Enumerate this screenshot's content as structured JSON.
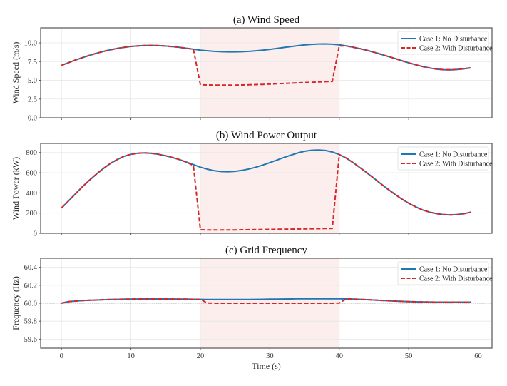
{
  "chart_data": {
    "type": "line",
    "xlabel": "Time (s)",
    "x_ticks": [
      "0",
      "10",
      "20",
      "30",
      "40",
      "50",
      "60"
    ],
    "x_tick_values": [
      0,
      10,
      20,
      30,
      40,
      50,
      60
    ],
    "xlim": [
      -3,
      62
    ],
    "disturbance_window": [
      20,
      40
    ],
    "colors": {
      "case1": "#1f77b4",
      "case2": "#d62728",
      "shade": "#fdeeee"
    },
    "legend_location": "top-right",
    "x": [
      0,
      1,
      2,
      3,
      4,
      5,
      6,
      7,
      8,
      9,
      10,
      11,
      12,
      13,
      14,
      15,
      16,
      17,
      18,
      19,
      20,
      21,
      22,
      23,
      24,
      25,
      26,
      27,
      28,
      29,
      30,
      31,
      32,
      33,
      34,
      35,
      36,
      37,
      38,
      39,
      40,
      41,
      42,
      43,
      44,
      45,
      46,
      47,
      48,
      49,
      50,
      51,
      52,
      53,
      54,
      55,
      56,
      57,
      58,
      59
    ],
    "panels": [
      {
        "title": "(a) Wind Speed",
        "ylabel": "Wind Speed (m/s)",
        "ylim": [
          0,
          12
        ],
        "y_ticks": [
          "0.0",
          "2.5",
          "5.0",
          "7.5",
          "10.0"
        ],
        "y_tick_values": [
          0,
          2.5,
          5,
          7.5,
          10
        ],
        "reference_line": null,
        "series": [
          {
            "name": "Case 1: No Disturbance",
            "style": "solid",
            "values": [
              7.0,
              7.35,
              7.7,
              8.02,
              8.32,
              8.6,
              8.85,
              9.07,
              9.25,
              9.4,
              9.52,
              9.6,
              9.65,
              9.66,
              9.63,
              9.58,
              9.5,
              9.4,
              9.28,
              9.15,
              9.03,
              8.94,
              8.87,
              8.82,
              8.8,
              8.8,
              8.82,
              8.87,
              8.94,
              9.03,
              9.13,
              9.25,
              9.38,
              9.5,
              9.62,
              9.72,
              9.8,
              9.85,
              9.86,
              9.82,
              9.74,
              9.6,
              9.42,
              9.22,
              9.0,
              8.75,
              8.48,
              8.2,
              7.92,
              7.62,
              7.34,
              7.08,
              6.85,
              6.65,
              6.5,
              6.42,
              6.4,
              6.45,
              6.55,
              6.68
            ]
          },
          {
            "name": "Case 2: With Disturbance",
            "style": "dashed",
            "values": [
              7.0,
              7.35,
              7.7,
              8.02,
              8.32,
              8.6,
              8.85,
              9.07,
              9.25,
              9.4,
              9.52,
              9.6,
              9.65,
              9.66,
              9.63,
              9.58,
              9.5,
              9.4,
              9.28,
              9.15,
              4.4,
              4.38,
              4.36,
              4.35,
              4.35,
              4.36,
              4.38,
              4.4,
              4.43,
              4.46,
              4.5,
              4.54,
              4.58,
              4.62,
              4.66,
              4.7,
              4.74,
              4.78,
              4.82,
              4.85,
              9.6,
              9.6,
              9.42,
              9.22,
              9.0,
              8.75,
              8.48,
              8.2,
              7.92,
              7.62,
              7.34,
              7.08,
              6.85,
              6.65,
              6.5,
              6.42,
              6.4,
              6.45,
              6.55,
              6.68
            ]
          }
        ]
      },
      {
        "title": "(b) Wind Power Output",
        "ylabel": "Wind Power (kW)",
        "ylim": [
          0,
          890
        ],
        "y_ticks": [
          "0",
          "200",
          "400",
          "600",
          "800"
        ],
        "y_tick_values": [
          0,
          200,
          400,
          600,
          800
        ],
        "reference_line": null,
        "series": [
          {
            "name": "Case 1: No Disturbance",
            "style": "solid",
            "values": [
              250,
              320,
              390,
              460,
              525,
              585,
              640,
              690,
              730,
              762,
              782,
              793,
              796,
              792,
              782,
              768,
              750,
              730,
              705,
              680,
              655,
              635,
              620,
              612,
              610,
              614,
              623,
              637,
              655,
              676,
              700,
              725,
              750,
              773,
              795,
              812,
              822,
              825,
              820,
              805,
              780,
              745,
              700,
              650,
              598,
              545,
              490,
              437,
              387,
              340,
              298,
              262,
              232,
              210,
              195,
              185,
              182,
              185,
              195,
              210
            ]
          },
          {
            "name": "Case 2: With Disturbance",
            "style": "dashed",
            "values": [
              250,
              320,
              390,
              460,
              525,
              585,
              640,
              690,
              730,
              762,
              782,
              793,
              796,
              792,
              782,
              768,
              750,
              730,
              705,
              670,
              35,
              34,
              33,
              33,
              33,
              34,
              35,
              36,
              37,
              38,
              39,
              40,
              41,
              42,
              43,
              44,
              45,
              46,
              47,
              48,
              780,
              745,
              700,
              650,
              598,
              545,
              490,
              437,
              387,
              340,
              298,
              262,
              232,
              210,
              195,
              185,
              182,
              185,
              195,
              210
            ]
          }
        ]
      },
      {
        "title": "(c) Grid Frequency",
        "ylabel": "Frequency (Hz)",
        "ylim": [
          59.5,
          60.5
        ],
        "y_ticks": [
          "59.6",
          "59.8",
          "60.0",
          "60.2",
          "60.4"
        ],
        "y_tick_values": [
          59.6,
          59.8,
          60.0,
          60.2,
          60.4
        ],
        "reference_line": 60.0,
        "series": [
          {
            "name": "Case 1: No Disturbance",
            "style": "solid",
            "values": [
              60.0,
              60.018,
              60.024,
              60.029,
              60.033,
              60.036,
              60.039,
              60.041,
              60.043,
              60.045,
              60.046,
              60.047,
              60.048,
              60.048,
              60.048,
              60.048,
              60.047,
              60.046,
              60.045,
              60.044,
              60.043,
              60.042,
              60.041,
              60.041,
              60.041,
              60.041,
              60.042,
              60.042,
              60.043,
              60.044,
              60.045,
              60.046,
              60.047,
              60.048,
              60.049,
              60.05,
              60.05,
              60.05,
              60.05,
              60.05,
              60.049,
              60.048,
              60.046,
              60.043,
              60.04,
              60.036,
              60.032,
              60.028,
              60.024,
              60.021,
              60.018,
              60.016,
              60.014,
              60.013,
              60.012,
              60.012,
              60.012,
              60.012,
              60.012,
              60.012
            ]
          },
          {
            "name": "Case 2: With Disturbance",
            "style": "dashed",
            "values": [
              60.0,
              60.018,
              60.024,
              60.029,
              60.033,
              60.036,
              60.039,
              60.041,
              60.043,
              60.045,
              60.046,
              60.047,
              60.048,
              60.048,
              60.048,
              60.048,
              60.047,
              60.046,
              60.045,
              60.044,
              60.043,
              60.002,
              60.0,
              60.0,
              60.0,
              60.0,
              60.0,
              60.0,
              60.0,
              60.0,
              60.0,
              60.0,
              60.0,
              60.0,
              60.0,
              60.0,
              60.0,
              60.0,
              60.0,
              60.0,
              60.002,
              60.048,
              60.046,
              60.043,
              60.04,
              60.036,
              60.032,
              60.028,
              60.024,
              60.021,
              60.018,
              60.016,
              60.014,
              60.013,
              60.012,
              60.012,
              60.012,
              60.012,
              60.012,
              60.012
            ]
          }
        ]
      }
    ]
  }
}
